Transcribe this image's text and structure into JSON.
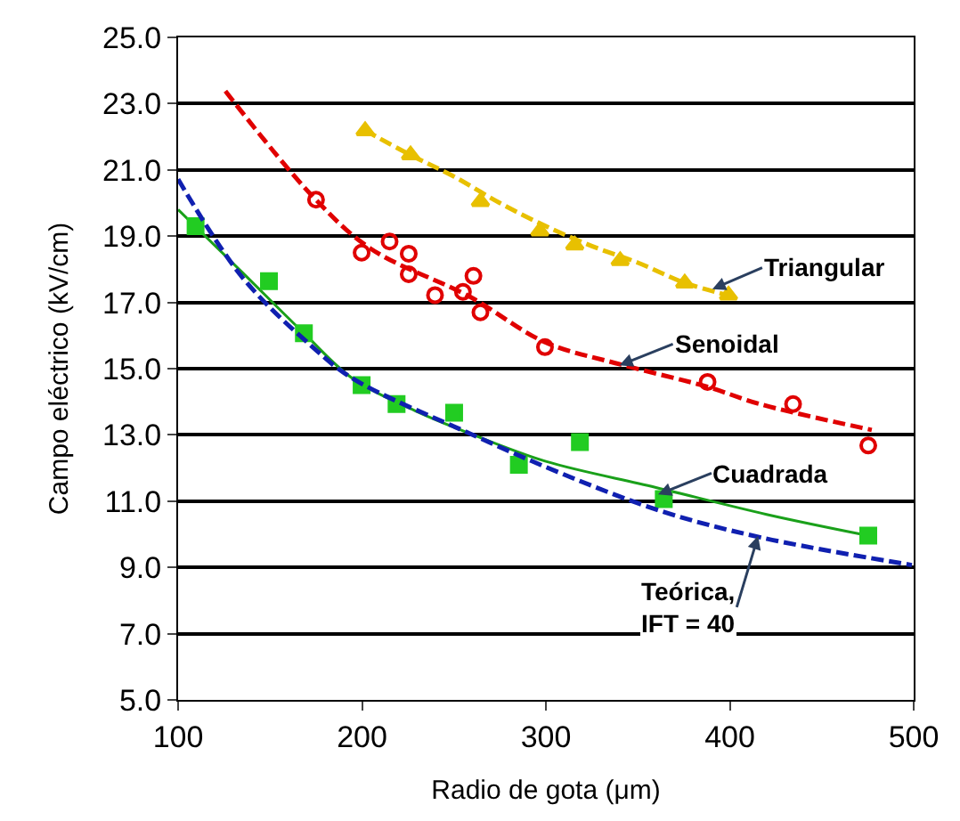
{
  "chart_data": {
    "type": "line",
    "xlabel": "Radio de gota (μm)",
    "ylabel": "Campo eléctrico (kV/cm)",
    "xlim": [
      100,
      500
    ],
    "xticks": [
      100,
      200,
      300,
      400,
      500
    ],
    "ylim": [
      5,
      25
    ],
    "yticks": [
      {
        "value": 5,
        "label": "5.0"
      },
      {
        "value": 7,
        "label": "7.0"
      },
      {
        "value": 9,
        "label": "9.0"
      },
      {
        "value": 11,
        "label": "11.0"
      },
      {
        "value": 13,
        "label": "13.0"
      },
      {
        "value": 15,
        "label": "15.0"
      },
      {
        "value": 17,
        "label": "17.0"
      },
      {
        "value": 19,
        "label": "19.0"
      },
      {
        "value": 21,
        "label": "21.0"
      },
      {
        "value": 23,
        "label": "23.0"
      },
      {
        "value": 25,
        "label": "25.0"
      }
    ],
    "grid": "y",
    "series": [
      {
        "color": "#e8c000",
        "line_style": "dashed",
        "marker": "none",
        "x": [
          201.4,
          226.4,
          250,
          275,
          300,
          325,
          350,
          375,
          400
        ],
        "values": [
          22.2,
          21.45,
          20.8,
          20.0,
          19.3,
          18.7,
          18.2,
          17.6,
          17.2
        ]
      },
      {
        "type": "scatter",
        "color": "#e8c000",
        "marker": "triangle",
        "x": [
          201.7,
          226.4,
          264.4,
          296.7,
          315.7,
          340.4,
          375.5,
          399.3
        ],
        "values": [
          22.18,
          21.45,
          20.04,
          19.15,
          18.73,
          18.26,
          17.58,
          17.22
        ]
      },
      {
        "color": "#e00000",
        "line_style": "dashed",
        "marker": "none",
        "x": [
          125.7,
          173.2,
          204.5,
          258.7,
          299.5,
          340.4,
          387.9,
          416.4,
          477.2
        ],
        "values": [
          23.38,
          20.2,
          18.63,
          17.17,
          15.8,
          15.13,
          14.45,
          13.93,
          13.15
        ]
      },
      {
        "type": "scatter",
        "color": "#e00000",
        "marker": "circle",
        "x": [
          175,
          199.8,
          215,
          225.4,
          225.4,
          239.7,
          254.9,
          260.6,
          264.4,
          299.5,
          387.9,
          434.4,
          475.3
        ],
        "values": [
          20.1,
          18.5,
          18.84,
          18.47,
          17.85,
          17.22,
          17.32,
          17.8,
          16.7,
          15.65,
          14.6,
          13.93,
          12.68
        ]
      },
      {
        "color": "#1aa01a",
        "line_style": "solid",
        "marker": "none",
        "x": [
          100,
          135,
          168.4,
          195,
          230,
          258.7,
          300,
          359.4,
          420,
          475.3
        ],
        "values": [
          19.8,
          17.9,
          16.07,
          14.7,
          13.7,
          13.04,
          12.2,
          11.42,
          10.6,
          9.96
        ]
      },
      {
        "type": "scatter",
        "color": "#22cc22",
        "marker": "square",
        "x": [
          109.5,
          149.4,
          168.4,
          199.8,
          218.8,
          250.1,
          285.3,
          318.5,
          364.1,
          475.3
        ],
        "values": [
          19.3,
          17.64,
          16.07,
          14.5,
          13.93,
          13.67,
          12.1,
          12.78,
          11.06,
          9.96
        ]
      },
      {
        "color": "#1020b0",
        "line_style": "dashed",
        "marker": "none",
        "x": [
          100,
          135.2,
          173.2,
          195,
          258.7,
          310,
          363.2,
          416.4,
          499
        ],
        "values": [
          20.72,
          17.74,
          15.65,
          14.7,
          13.04,
          11.8,
          10.69,
          9.91,
          9.07
        ]
      }
    ],
    "annotations": [
      {
        "text": "Triangular",
        "x": 390.5,
        "y": 17.4
      },
      {
        "text": "Senoidal",
        "x": 340,
        "y": 15.1
      },
      {
        "text": "Cuadrada",
        "x": 361,
        "y": 11.2
      },
      {
        "text": "Teórica,\nIFT = 40",
        "x": 415.4,
        "y": 9.95
      }
    ]
  }
}
